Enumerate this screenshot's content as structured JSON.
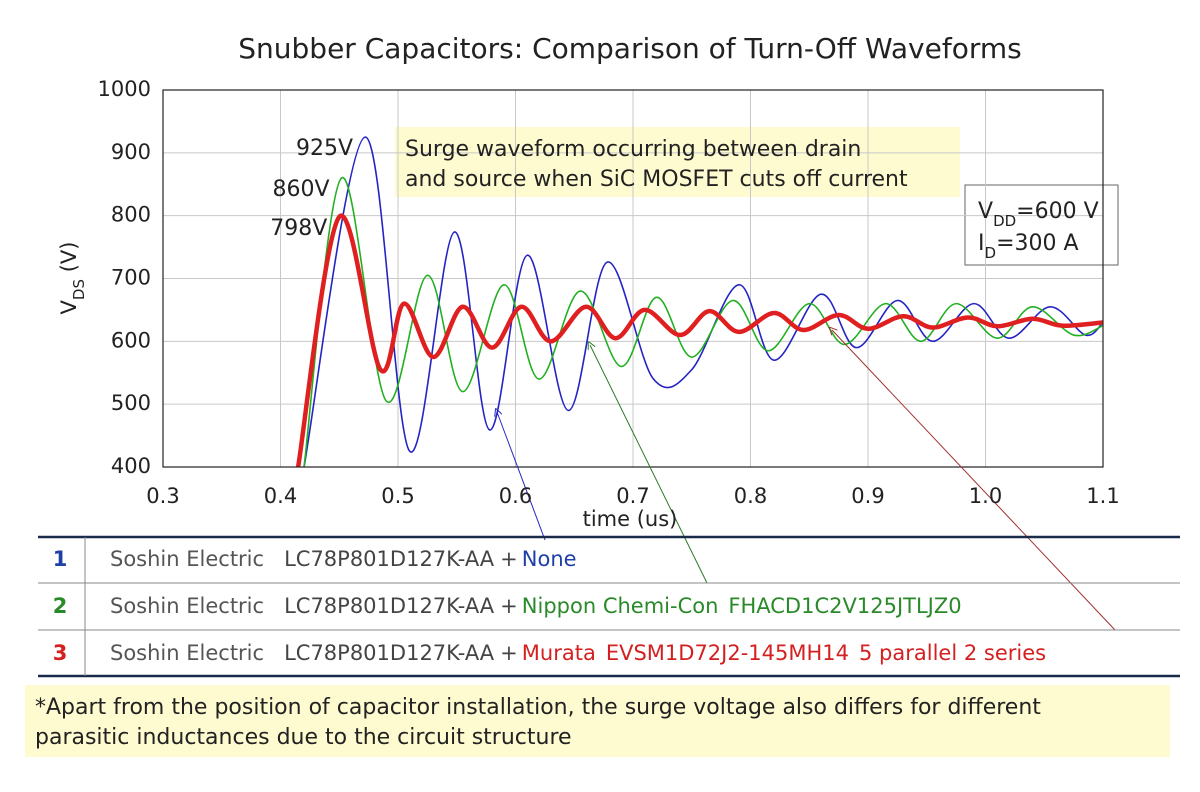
{
  "chart_data": {
    "type": "line",
    "title": "Snubber Capacitors:  Comparison of Turn-Off Waveforms",
    "xlabel": "time (us)",
    "ylabel": {
      "main": "V",
      "sub": "DS",
      "rest": " (V)"
    },
    "xlim": [
      0.3,
      1.1
    ],
    "ylim": [
      400,
      1000
    ],
    "xticks": [
      0.3,
      0.4,
      0.5,
      0.6,
      0.7,
      0.8,
      0.9,
      {
        "value": 1,
        "label": "1.0"
      },
      1.1
    ],
    "yticks": [
      400,
      500,
      600,
      700,
      800,
      900,
      1000
    ],
    "grid": true,
    "series": [
      {
        "name": "1",
        "color": "#2424c4",
        "x": [
          0.42,
          0.472,
          0.51,
          0.548,
          0.578,
          0.61,
          0.645,
          0.678,
          0.717,
          0.75,
          0.79,
          0.82,
          0.86,
          0.89,
          0.925,
          0.955,
          0.99,
          1.02,
          1.055,
          1.085,
          1.1
        ],
        "values": [
          400,
          925,
          425,
          774,
          459,
          737,
          490,
          726,
          541,
          555,
          690,
          570,
          675,
          590,
          665,
          600,
          660,
          605,
          655,
          610,
          630
        ]
      },
      {
        "name": "2",
        "color": "#22b022",
        "x": [
          0.42,
          0.452,
          0.49,
          0.525,
          0.555,
          0.59,
          0.62,
          0.655,
          0.69,
          0.72,
          0.75,
          0.785,
          0.815,
          0.85,
          0.88,
          0.915,
          0.945,
          0.975,
          1.01,
          1.04,
          1.075,
          1.1
        ],
        "values": [
          400,
          860,
          505,
          705,
          520,
          690,
          540,
          680,
          560,
          670,
          575,
          665,
          585,
          660,
          595,
          660,
          600,
          660,
          605,
          655,
          610,
          625
        ]
      },
      {
        "name": "3",
        "color": "#e02020",
        "x": [
          0.415,
          0.45,
          0.485,
          0.505,
          0.53,
          0.555,
          0.58,
          0.605,
          0.63,
          0.66,
          0.685,
          0.71,
          0.74,
          0.765,
          0.79,
          0.82,
          0.845,
          0.875,
          0.9,
          0.93,
          0.955,
          0.985,
          1.01,
          1.04,
          1.065,
          1.1
        ],
        "values": [
          400,
          798,
          555,
          660,
          575,
          655,
          590,
          655,
          600,
          655,
          605,
          650,
          610,
          648,
          615,
          645,
          618,
          642,
          620,
          640,
          622,
          638,
          624,
          636,
          625,
          630
        ]
      }
    ],
    "annotations": [
      "925V",
      "860V",
      "798V"
    ],
    "note": [
      "Surge waveform occurring between drain",
      "and source when SiC MOSFET cuts off current"
    ],
    "conditions": [
      {
        "main": "V",
        "sub": "DD",
        "rest": "=600 V"
      },
      {
        "main": "I",
        "sub": "D",
        "rest": "=300 A"
      }
    ]
  },
  "table": {
    "rows": [
      {
        "number": "1",
        "color": "#1f3fa8",
        "maker": "Soshin Electric",
        "part": "LC78P801D127K-AA",
        "plus": "+",
        "items": [
          "None"
        ]
      },
      {
        "number": "2",
        "color": "#2a8a2a",
        "maker": "Soshin Electric",
        "part": "LC78P801D127K-AA",
        "plus": "+",
        "items": [
          "Nippon Chemi-Con",
          "FHACD1C2V125JTLJZ0"
        ]
      },
      {
        "number": "3",
        "color": "#d42020",
        "maker": "Soshin Electric",
        "part": "LC78P801D127K-AA",
        "plus": "+",
        "items": [
          "Murata",
          "EVSM1D72J2-145MH14",
          "5 parallel 2 series"
        ]
      }
    ]
  },
  "footnote": [
    "*Apart from the position of capacitor installation, the surge voltage also differs for  different",
    " parasitic inductances due to the circuit structure"
  ]
}
